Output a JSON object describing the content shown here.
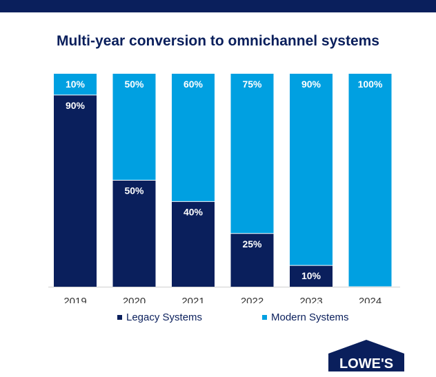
{
  "title": "Multi-year conversion to omnichannel systems",
  "chart_data": {
    "type": "bar",
    "stacked": true,
    "categories": [
      "2019",
      "2020",
      "2021",
      "2022",
      "2023",
      "2024"
    ],
    "series": [
      {
        "name": "Legacy Systems",
        "color": "#0a1f5c",
        "values": [
          90,
          50,
          40,
          25,
          10,
          0
        ],
        "labels": [
          "90%",
          "50%",
          "40%",
          "25%",
          "10%",
          ""
        ]
      },
      {
        "name": "Modern Systems",
        "color": "#00a0e1",
        "values": [
          10,
          50,
          60,
          75,
          90,
          100
        ],
        "labels": [
          "10%",
          "50%",
          "60%",
          "75%",
          "90%",
          "100%"
        ]
      }
    ],
    "ylim": [
      0,
      100
    ],
    "grid": false,
    "legend": "bottom"
  },
  "logo": {
    "text": "LOWE'S",
    "color": "#0a1f5c"
  }
}
